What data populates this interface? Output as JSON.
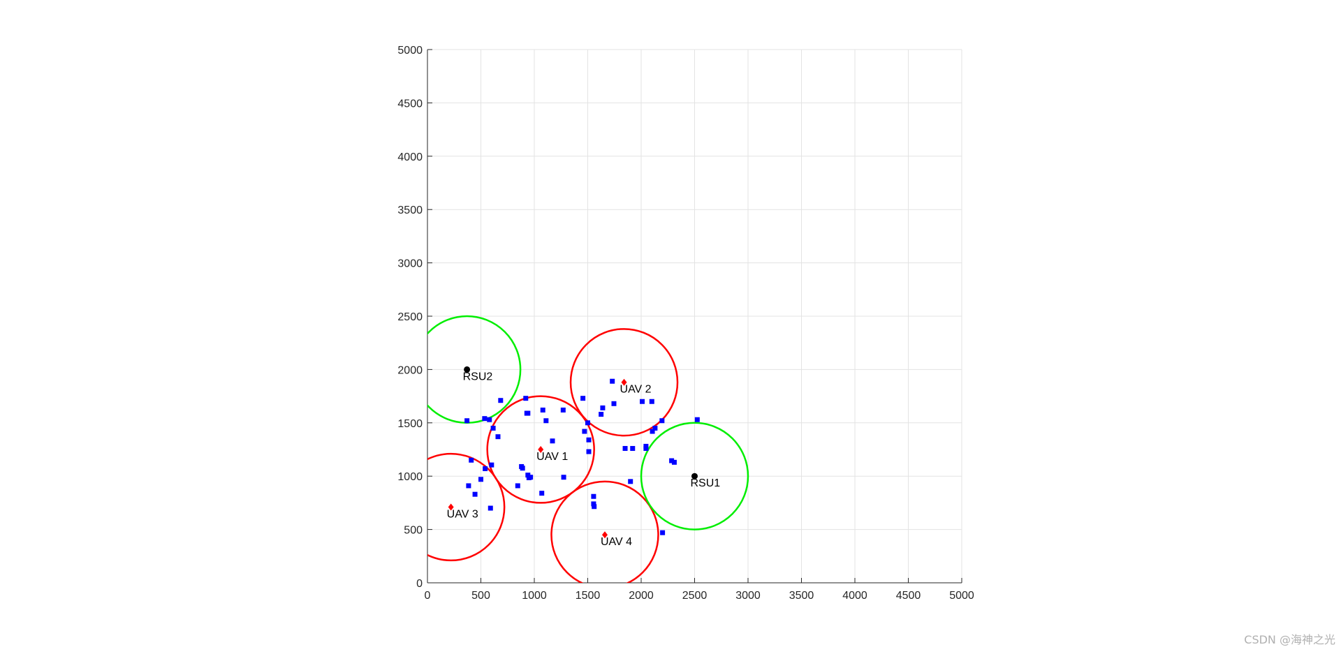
{
  "chart_data": {
    "type": "scatter",
    "title": "",
    "xlabel": "",
    "ylabel": "",
    "xlim": [
      0,
      5000
    ],
    "ylim": [
      0,
      5000
    ],
    "xticks": [
      0,
      500,
      1000,
      1500,
      2000,
      2500,
      3000,
      3500,
      4000,
      4500,
      5000
    ],
    "yticks": [
      0,
      500,
      1000,
      1500,
      2000,
      2500,
      3000,
      3500,
      4000,
      4500,
      5000
    ],
    "grid": true,
    "coverage_radius": 500,
    "users": {
      "marker": "square",
      "color": "#0000ff",
      "points": [
        [
          370,
          1520
        ],
        [
          535,
          1540
        ],
        [
          580,
          1530
        ],
        [
          615,
          1450
        ],
        [
          660,
          1370
        ],
        [
          685,
          1710
        ],
        [
          920,
          1730
        ],
        [
          930,
          1590
        ],
        [
          940,
          1590
        ],
        [
          1080,
          1620
        ],
        [
          1110,
          1520
        ],
        [
          1170,
          1330
        ],
        [
          1270,
          1620
        ],
        [
          1455,
          1730
        ],
        [
          1470,
          1420
        ],
        [
          1500,
          1500
        ],
        [
          1510,
          1340
        ],
        [
          1510,
          1230
        ],
        [
          1625,
          1580
        ],
        [
          1640,
          1640
        ],
        [
          1730,
          1890
        ],
        [
          1745,
          1680
        ],
        [
          1850,
          1260
        ],
        [
          1920,
          1260
        ],
        [
          2010,
          1700
        ],
        [
          2045,
          1280
        ],
        [
          2100,
          1700
        ],
        [
          2105,
          1420
        ],
        [
          2130,
          1450
        ],
        [
          2195,
          1520
        ],
        [
          2525,
          1530
        ],
        [
          2285,
          1145
        ],
        [
          2310,
          1130
        ],
        [
          2045,
          1260
        ],
        [
          1900,
          950
        ],
        [
          410,
          1150
        ],
        [
          540,
          1070
        ],
        [
          600,
          1105
        ],
        [
          500,
          970
        ],
        [
          385,
          910
        ],
        [
          445,
          830
        ],
        [
          590,
          700
        ],
        [
          845,
          910
        ],
        [
          880,
          1090
        ],
        [
          890,
          1075
        ],
        [
          940,
          1010
        ],
        [
          950,
          985
        ],
        [
          965,
          990
        ],
        [
          1070,
          840
        ],
        [
          1275,
          990
        ],
        [
          1555,
          810
        ],
        [
          1555,
          740
        ],
        [
          1560,
          715
        ],
        [
          2200,
          470
        ]
      ]
    },
    "uavs": {
      "marker": "diamond",
      "color": "#ff0000",
      "circle_color": "#ff0000",
      "items": [
        {
          "label": "UAV 1",
          "x": 1060,
          "y": 1250
        },
        {
          "label": "UAV 2",
          "x": 1840,
          "y": 1880
        },
        {
          "label": "UAV 3",
          "x": 220,
          "y": 710
        },
        {
          "label": "UAV 4",
          "x": 1660,
          "y": 450
        }
      ]
    },
    "rsus": {
      "marker": "circle",
      "color": "#000000",
      "circle_color": "#00ee00",
      "items": [
        {
          "label": "RSU1",
          "x": 2500,
          "y": 1000
        },
        {
          "label": "RSU2",
          "x": 370,
          "y": 2000
        }
      ]
    }
  },
  "watermark": "CSDN @海神之光"
}
